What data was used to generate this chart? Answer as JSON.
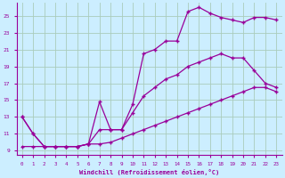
{
  "xlabel": "Windchill (Refroidissement éolien,°C)",
  "background_color": "#cceeff",
  "grid_color": "#aaccbb",
  "line_color": "#990099",
  "xlim": [
    -0.5,
    23.5
  ],
  "ylim": [
    8.5,
    26.5
  ],
  "yticks": [
    9,
    11,
    13,
    15,
    17,
    19,
    21,
    23,
    25
  ],
  "xticks": [
    0,
    1,
    2,
    3,
    4,
    5,
    6,
    7,
    8,
    9,
    10,
    11,
    12,
    13,
    14,
    15,
    16,
    17,
    18,
    19,
    20,
    21,
    22,
    23
  ],
  "line1_x": [
    0,
    1,
    2,
    3,
    4,
    5,
    6,
    7,
    8,
    9,
    10,
    11,
    12,
    13,
    14,
    15,
    16,
    17,
    18,
    19,
    20,
    21,
    22,
    23
  ],
  "line1_y": [
    13,
    11,
    9.5,
    9.5,
    9.5,
    9.5,
    9.8,
    14.8,
    11.5,
    11.5,
    14.5,
    20.5,
    21.0,
    22.0,
    22.0,
    25.5,
    26.0,
    25.3,
    24.8,
    24.5,
    24.2,
    24.8,
    24.8,
    24.5
  ],
  "line2_x": [
    0,
    1,
    2,
    3,
    4,
    5,
    6,
    7,
    8,
    9,
    10,
    11,
    12,
    13,
    14,
    15,
    16,
    17,
    18,
    19,
    20,
    21,
    22,
    23
  ],
  "line2_y": [
    13,
    11,
    9.5,
    9.5,
    9.5,
    9.5,
    9.8,
    11.5,
    11.5,
    11.5,
    13.5,
    15.5,
    16.5,
    17.5,
    18.0,
    19.0,
    19.5,
    20.0,
    20.5,
    20.0,
    20.0,
    18.5,
    17.0,
    16.5
  ],
  "line3_x": [
    0,
    1,
    2,
    3,
    4,
    5,
    6,
    7,
    8,
    9,
    10,
    11,
    12,
    13,
    14,
    15,
    16,
    17,
    18,
    19,
    20,
    21,
    22,
    23
  ],
  "line3_y": [
    9.5,
    9.5,
    9.5,
    9.5,
    9.5,
    9.5,
    9.8,
    9.8,
    10.0,
    10.5,
    11.0,
    11.5,
    12.0,
    12.5,
    13.0,
    13.5,
    14.0,
    14.5,
    15.0,
    15.5,
    16.0,
    16.5,
    16.5,
    16.0
  ]
}
